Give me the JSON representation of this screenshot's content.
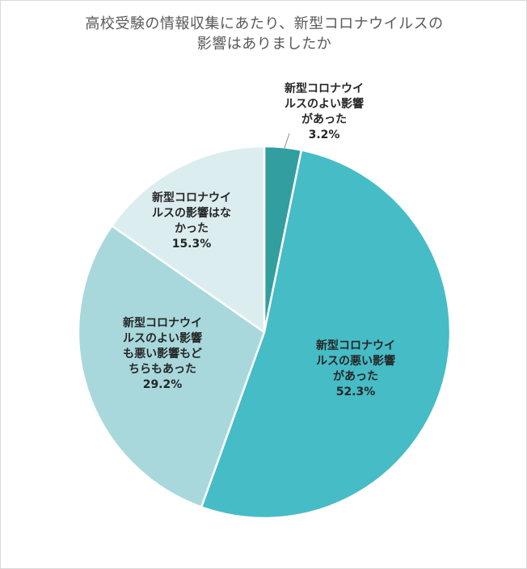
{
  "chart_data": {
    "type": "pie",
    "title_lines": [
      "高校受験の情報収集にあたり、新型コロナウイルスの",
      "影響はありましたか"
    ],
    "slices": [
      {
        "label_lines": [
          "新型コロナウイ",
          "ルスのよい影響",
          "があった"
        ],
        "value": 3.2,
        "value_label": "3.2%",
        "color": "#339ea0"
      },
      {
        "label_lines": [
          "新型コロナウイ",
          "ルスの悪い影響",
          "があった"
        ],
        "value": 52.3,
        "value_label": "52.3%",
        "color": "#45bcc6"
      },
      {
        "label_lines": [
          "新型コロナウイ",
          "ルスのよい影響",
          "も悪い影響もど",
          "ちらもあった"
        ],
        "value": 29.2,
        "value_label": "29.2%",
        "color": "#a8d8dc"
      },
      {
        "label_lines": [
          "新型コロナウイ",
          "ルスの影響はな",
          "かった"
        ],
        "value": 15.3,
        "value_label": "15.3%",
        "color": "#dcedf0"
      }
    ],
    "start_angle": "12 o'clock",
    "direction": "clockwise",
    "legend": "none"
  }
}
